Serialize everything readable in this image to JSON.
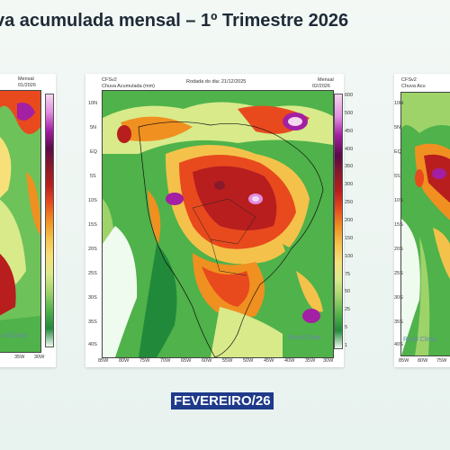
{
  "title": "va acumulada mensal – 1º Trimestre 2026",
  "month_label": "FEVEREIRO/26",
  "panels": {
    "left": {
      "right_label": "Mensal",
      "date": "01/2026",
      "watermark": "ral Clima"
    },
    "center": {
      "model": "CFSv2",
      "variable": "Chuva Acumulada (mm)",
      "run_text": "Rodada do dia: 21/12/2025",
      "right_label": "Mensal",
      "date": "02/2026",
      "watermark": "Rural Clima"
    },
    "right": {
      "model": "CFSv2",
      "variable": "Chuva Acu",
      "watermark": "Rural Clima"
    }
  },
  "colorbar": {
    "ticks": [
      "600",
      "500",
      "450",
      "400",
      "350",
      "300",
      "250",
      "200",
      "150",
      "100",
      "75",
      "50",
      "25",
      "5",
      "1"
    ],
    "colors": [
      "#f3d7ef",
      "#e08de0",
      "#a31fa3",
      "#5a0a4a",
      "#8a1a2a",
      "#b81e1e",
      "#e84a1e",
      "#f09020",
      "#f4c24a",
      "#f7e07a",
      "#d8ea8a",
      "#9ed36a",
      "#4fb24a",
      "#218a3a",
      "#f0fbf0"
    ]
  },
  "lat_ticks": [
    "10N",
    "5N",
    "EQ",
    "5S",
    "10S",
    "15S",
    "20S",
    "25S",
    "30S",
    "35S",
    "40S"
  ],
  "lon_ticks": [
    "85W",
    "80W",
    "75W",
    "70W",
    "65W",
    "60W",
    "55W",
    "50W",
    "45W",
    "40W",
    "35W",
    "30W"
  ],
  "left_lon_ticks": [
    "35W",
    "30W"
  ],
  "right_lon_ticks": [
    "85W",
    "80W",
    "75W"
  ],
  "right_lat_ticks": [
    "10N",
    "5N",
    "EQ",
    "5S",
    "10S",
    "15S",
    "20S",
    "25S",
    "30S",
    "35S",
    "40S"
  ]
}
